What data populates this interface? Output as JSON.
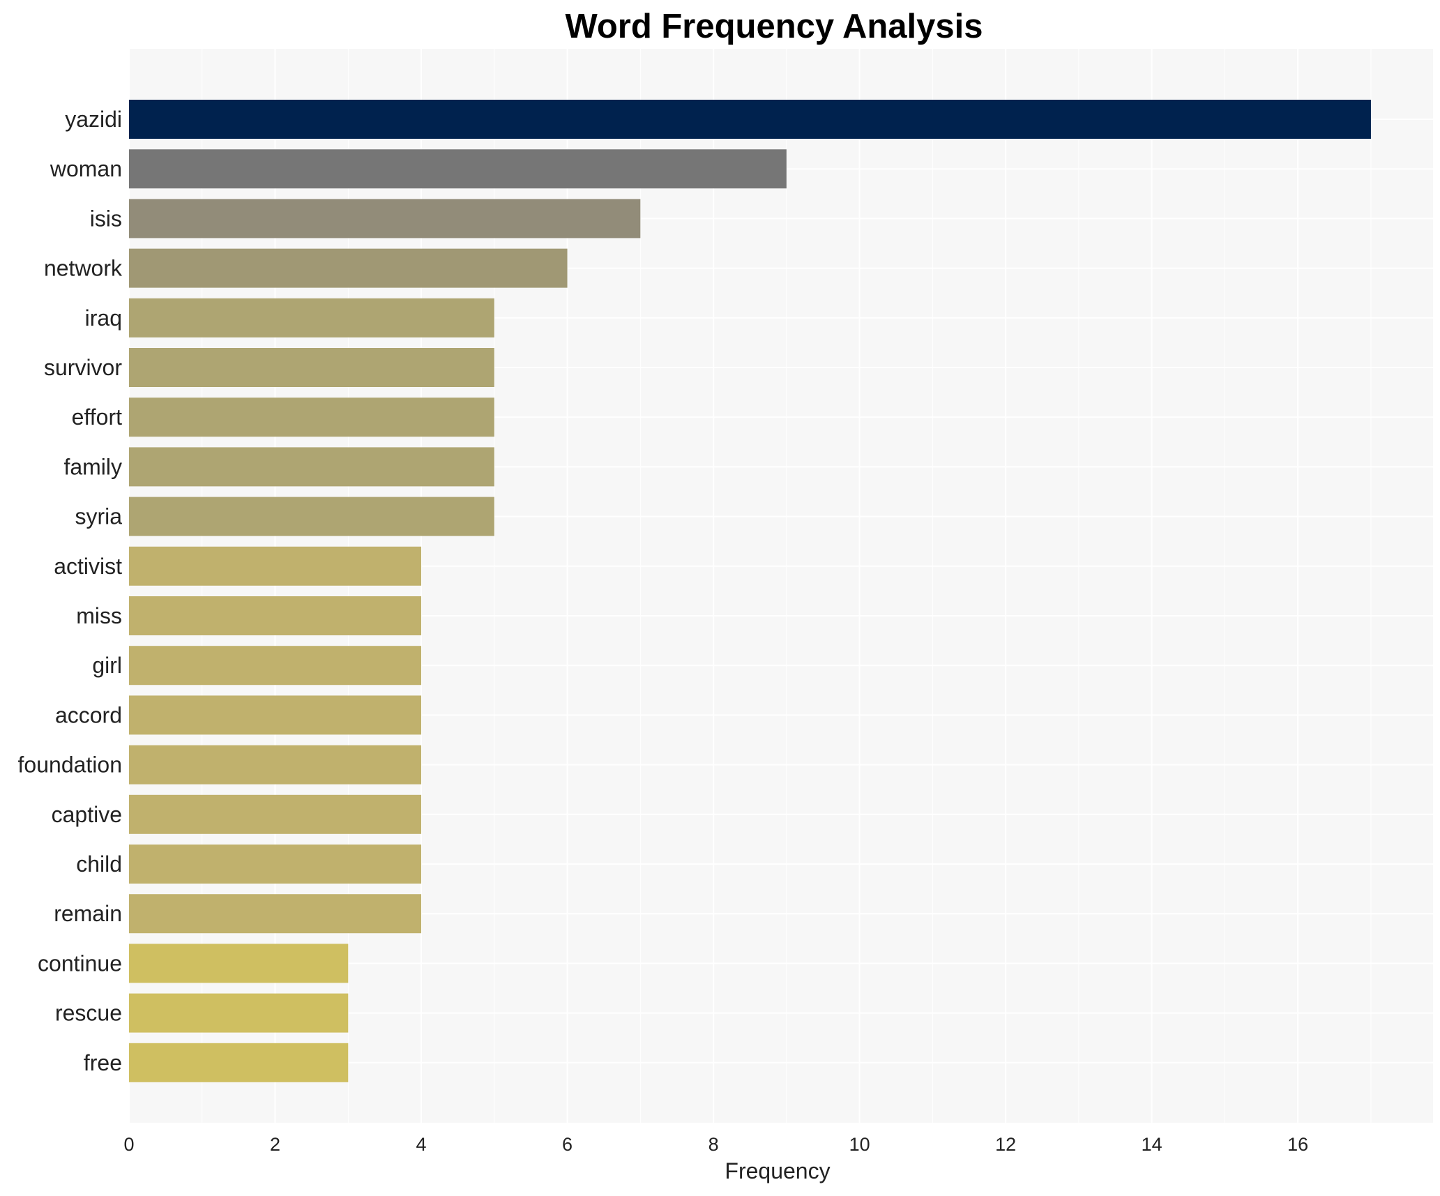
{
  "chart_data": {
    "type": "bar",
    "orientation": "horizontal",
    "title": "Word Frequency Analysis",
    "xlabel": "Frequency",
    "ylabel": "",
    "xlim": [
      0,
      17.85
    ],
    "xticks": [
      0,
      2,
      4,
      6,
      8,
      10,
      12,
      14,
      16
    ],
    "grid": true,
    "categories": [
      "yazidi",
      "woman",
      "isis",
      "network",
      "iraq",
      "survivor",
      "effort",
      "family",
      "syria",
      "activist",
      "miss",
      "girl",
      "accord",
      "foundation",
      "captive",
      "child",
      "remain",
      "continue",
      "rescue",
      "free"
    ],
    "values": [
      17,
      9,
      7,
      6,
      5,
      5,
      5,
      5,
      5,
      4,
      4,
      4,
      4,
      4,
      4,
      4,
      4,
      3,
      3,
      3
    ],
    "colors": [
      "#00224e",
      "#767676",
      "#928c79",
      "#a09874",
      "#aea572",
      "#aea572",
      "#aea572",
      "#aea572",
      "#aea572",
      "#c0b16d",
      "#c0b16d",
      "#c0b16d",
      "#c0b16d",
      "#c0b16d",
      "#c0b16d",
      "#c0b16d",
      "#c0b16d",
      "#cfbf61",
      "#cfbf61",
      "#cfbf61"
    ],
    "background": "#f7f7f7",
    "gridColor": "#ffffff"
  }
}
